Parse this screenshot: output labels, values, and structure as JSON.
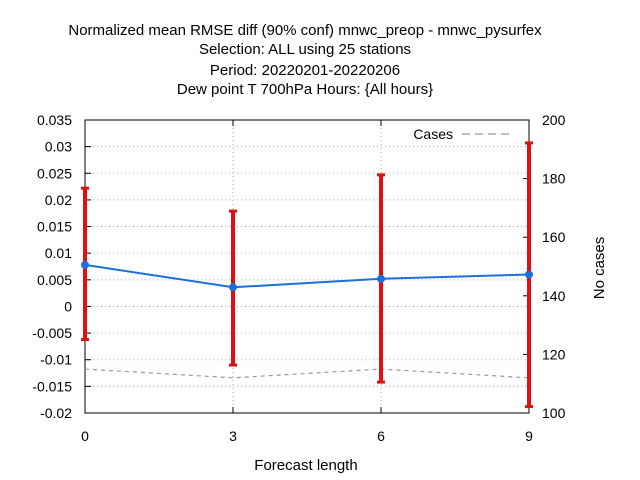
{
  "chart_data": {
    "type": "line",
    "title_lines": [
      "Normalized mean RMSE diff (90% conf) mnwc_preop - mnwc_pysurfex",
      "Selection: ALL using    25 stations",
      "Period: 20220201-20220206",
      "Dew point T 700hPa   Hours: {All hours}"
    ],
    "xlabel": "Forecast length",
    "ylabel": "",
    "y2label": "No cases",
    "x": [
      0,
      3,
      6,
      9
    ],
    "xticks": [
      "0",
      "3",
      "6",
      "9"
    ],
    "xlim": [
      0,
      9
    ],
    "ylim": [
      -0.02,
      0.035
    ],
    "yticks": [
      "-0.02",
      "-0.015",
      "-0.01",
      "-0.005",
      "0",
      "0.005",
      "0.01",
      "0.015",
      "0.02",
      "0.025",
      "0.03",
      "0.035"
    ],
    "y2lim": [
      100,
      200
    ],
    "y2ticks": [
      "100",
      "120",
      "140",
      "160",
      "180",
      "200"
    ],
    "grid": true,
    "legend_position": "top-right",
    "series": [
      {
        "name": "",
        "axis": "left",
        "color": "#1e6fdc",
        "style": "line-points",
        "values": [
          0.0078,
          0.0036,
          0.0052,
          0.006
        ],
        "err_low": [
          -0.0062,
          -0.011,
          -0.0142,
          -0.0188
        ],
        "err_high": [
          0.0222,
          0.0179,
          0.0247,
          0.0307
        ],
        "err_color": "#e01010"
      },
      {
        "name": "Cases",
        "axis": "right",
        "color": "#999999",
        "style": "dashed",
        "values": [
          115,
          112,
          115,
          112
        ]
      }
    ]
  }
}
